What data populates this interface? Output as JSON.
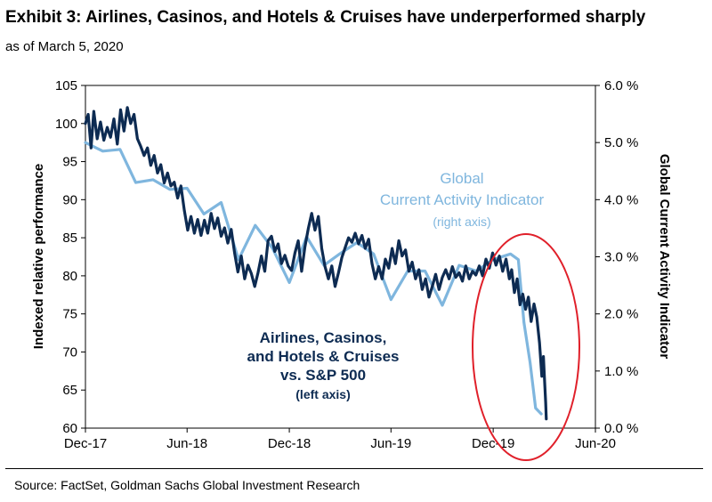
{
  "header": {
    "title": "Exhibit 3: Airlines, Casinos, and Hotels & Cruises have underperformed sharply",
    "subtitle": "as of March 5, 2020"
  },
  "footer": {
    "source": "Source: FactSet, Goldman Sachs Global Investment Research"
  },
  "annotations": {
    "cai_lines": [
      "Global",
      "Current Activity Indicator",
      "(right axis)"
    ],
    "perf_lines": [
      "Airlines, Casinos,",
      "and Hotels & Cruises",
      "vs. S&P 500",
      "(left axis)"
    ]
  },
  "colors": {
    "dark_series": "#0d2b52",
    "light_series": "#7fb6de",
    "highlight_ellipse": "#e0202a"
  },
  "chart_data": {
    "type": "line",
    "title": "Exhibit 3: Airlines, Casinos, and Hotels & Cruises have underperformed sharply",
    "subtitle": "as of March 5, 2020",
    "x_axis": {
      "type": "date",
      "range": [
        "2017-12-01",
        "2020-06-01"
      ],
      "ticks": [
        "2017-12-01",
        "2018-06-01",
        "2018-12-01",
        "2019-06-01",
        "2019-12-01",
        "2020-06-01"
      ],
      "tick_labels": [
        "Dec-17",
        "Jun-18",
        "Dec-18",
        "Jun-19",
        "Dec-19",
        "Jun-20"
      ]
    },
    "y_left": {
      "label": "Indexed relative performance",
      "range": [
        60,
        105
      ],
      "ticks": [
        60,
        65,
        70,
        75,
        80,
        85,
        90,
        95,
        100,
        105
      ]
    },
    "y_right": {
      "label": "Global Current Activity Indicator",
      "range": [
        0,
        6
      ],
      "ticks": [
        0,
        1,
        2,
        3,
        4,
        5,
        6
      ],
      "tick_labels": [
        "0.0 %",
        "1.0 %",
        "2.0 %",
        "3.0 %",
        "4.0 %",
        "5.0 %",
        "6.0 %"
      ]
    },
    "series": [
      {
        "name": "Airlines, Casinos, and Hotels & Cruises vs. S&P 500",
        "axis": "left",
        "points": [
          [
            "2017-12-01",
            100.0
          ],
          [
            "2017-12-06",
            101.2
          ],
          [
            "2017-12-11",
            96.8
          ],
          [
            "2017-12-16",
            101.6
          ],
          [
            "2017-12-22",
            98.0
          ],
          [
            "2017-12-28",
            100.2
          ],
          [
            "2018-01-03",
            97.8
          ],
          [
            "2018-01-09",
            99.5
          ],
          [
            "2018-01-15",
            98.2
          ],
          [
            "2018-01-21",
            100.6
          ],
          [
            "2018-01-27",
            97.3
          ],
          [
            "2018-02-02",
            101.8
          ],
          [
            "2018-02-08",
            99.0
          ],
          [
            "2018-02-14",
            102.1
          ],
          [
            "2018-02-20",
            100.0
          ],
          [
            "2018-02-26",
            101.2
          ],
          [
            "2018-03-04",
            98.0
          ],
          [
            "2018-03-10",
            97.0
          ],
          [
            "2018-03-16",
            95.8
          ],
          [
            "2018-03-22",
            96.8
          ],
          [
            "2018-03-28",
            94.5
          ],
          [
            "2018-04-03",
            95.8
          ],
          [
            "2018-04-09",
            93.5
          ],
          [
            "2018-04-15",
            94.6
          ],
          [
            "2018-04-21",
            92.2
          ],
          [
            "2018-04-27",
            93.5
          ],
          [
            "2018-05-03",
            91.8
          ],
          [
            "2018-05-09",
            92.3
          ],
          [
            "2018-05-15",
            90.2
          ],
          [
            "2018-05-21",
            91.8
          ],
          [
            "2018-05-27",
            88.6
          ],
          [
            "2018-06-02",
            86.0
          ],
          [
            "2018-06-08",
            87.8
          ],
          [
            "2018-06-14",
            85.6
          ],
          [
            "2018-06-20",
            87.4
          ],
          [
            "2018-06-26",
            85.3
          ],
          [
            "2018-07-02",
            87.3
          ],
          [
            "2018-07-08",
            85.6
          ],
          [
            "2018-07-14",
            88.2
          ],
          [
            "2018-07-20",
            86.2
          ],
          [
            "2018-07-26",
            87.6
          ],
          [
            "2018-08-01",
            85.2
          ],
          [
            "2018-08-07",
            86.3
          ],
          [
            "2018-08-13",
            84.3
          ],
          [
            "2018-08-19",
            86.1
          ],
          [
            "2018-08-25",
            83.0
          ],
          [
            "2018-08-31",
            80.5
          ],
          [
            "2018-09-06",
            82.6
          ],
          [
            "2018-09-12",
            79.6
          ],
          [
            "2018-09-18",
            81.4
          ],
          [
            "2018-09-24",
            80.3
          ],
          [
            "2018-09-30",
            78.6
          ],
          [
            "2018-10-06",
            80.4
          ],
          [
            "2018-10-12",
            82.6
          ],
          [
            "2018-10-18",
            80.6
          ],
          [
            "2018-10-24",
            84.6
          ],
          [
            "2018-10-30",
            85.2
          ],
          [
            "2018-11-05",
            83.2
          ],
          [
            "2018-11-11",
            84.2
          ],
          [
            "2018-11-17",
            81.6
          ],
          [
            "2018-11-23",
            82.7
          ],
          [
            "2018-11-29",
            81.3
          ],
          [
            "2018-12-05",
            80.7
          ],
          [
            "2018-12-11",
            83.0
          ],
          [
            "2018-12-17",
            84.6
          ],
          [
            "2018-12-23",
            80.6
          ],
          [
            "2018-12-29",
            83.8
          ],
          [
            "2019-01-04",
            86.2
          ],
          [
            "2019-01-10",
            88.2
          ],
          [
            "2019-01-16",
            86.0
          ],
          [
            "2019-01-22",
            87.8
          ],
          [
            "2019-01-28",
            83.6
          ],
          [
            "2019-02-03",
            81.2
          ],
          [
            "2019-02-09",
            79.6
          ],
          [
            "2019-02-15",
            81.3
          ],
          [
            "2019-02-21",
            78.6
          ],
          [
            "2019-02-27",
            80.4
          ],
          [
            "2019-03-05",
            82.4
          ],
          [
            "2019-03-11",
            83.7
          ],
          [
            "2019-03-17",
            85.0
          ],
          [
            "2019-03-23",
            84.4
          ],
          [
            "2019-03-29",
            85.6
          ],
          [
            "2019-04-04",
            84.2
          ],
          [
            "2019-04-10",
            85.3
          ],
          [
            "2019-04-16",
            83.6
          ],
          [
            "2019-04-22",
            84.8
          ],
          [
            "2019-04-28",
            81.6
          ],
          [
            "2019-05-04",
            79.6
          ],
          [
            "2019-05-10",
            81.2
          ],
          [
            "2019-05-16",
            79.6
          ],
          [
            "2019-05-22",
            82.2
          ],
          [
            "2019-05-28",
            81.0
          ],
          [
            "2019-06-03",
            83.6
          ],
          [
            "2019-06-09",
            81.6
          ],
          [
            "2019-06-15",
            84.6
          ],
          [
            "2019-06-21",
            82.6
          ],
          [
            "2019-06-27",
            83.4
          ],
          [
            "2019-07-03",
            80.6
          ],
          [
            "2019-07-09",
            81.8
          ],
          [
            "2019-07-15",
            79.6
          ],
          [
            "2019-07-21",
            80.8
          ],
          [
            "2019-07-27",
            78.2
          ],
          [
            "2019-08-02",
            79.6
          ],
          [
            "2019-08-08",
            77.2
          ],
          [
            "2019-08-14",
            78.6
          ],
          [
            "2019-08-20",
            80.2
          ],
          [
            "2019-08-26",
            78.2
          ],
          [
            "2019-09-01",
            79.8
          ],
          [
            "2019-09-07",
            80.8
          ],
          [
            "2019-09-13",
            79.6
          ],
          [
            "2019-09-19",
            81.2
          ],
          [
            "2019-09-25",
            79.8
          ],
          [
            "2019-10-01",
            80.4
          ],
          [
            "2019-10-07",
            79.3
          ],
          [
            "2019-10-13",
            81.3
          ],
          [
            "2019-10-19",
            79.6
          ],
          [
            "2019-10-25",
            80.6
          ],
          [
            "2019-10-31",
            80.1
          ],
          [
            "2019-11-06",
            81.3
          ],
          [
            "2019-11-12",
            80.0
          ],
          [
            "2019-11-18",
            82.2
          ],
          [
            "2019-11-24",
            81.0
          ],
          [
            "2019-11-30",
            83.0
          ],
          [
            "2019-12-06",
            81.4
          ],
          [
            "2019-12-12",
            82.6
          ],
          [
            "2019-12-18",
            80.6
          ],
          [
            "2019-12-24",
            82.2
          ],
          [
            "2019-12-30",
            79.6
          ],
          [
            "2020-01-03",
            80.8
          ],
          [
            "2020-01-08",
            77.8
          ],
          [
            "2020-01-13",
            79.6
          ],
          [
            "2020-01-18",
            76.2
          ],
          [
            "2020-01-23",
            77.6
          ],
          [
            "2020-01-28",
            75.6
          ],
          [
            "2020-02-02",
            77.2
          ],
          [
            "2020-02-07",
            74.0
          ],
          [
            "2020-02-12",
            76.3
          ],
          [
            "2020-02-17",
            74.6
          ],
          [
            "2020-02-22",
            71.2
          ],
          [
            "2020-02-26",
            66.8
          ],
          [
            "2020-02-29",
            69.4
          ],
          [
            "2020-03-02",
            66.2
          ],
          [
            "2020-03-04",
            63.4
          ],
          [
            "2020-03-05",
            61.2
          ]
        ]
      },
      {
        "name": "Global Current Activity Indicator",
        "axis": "right",
        "points": [
          [
            "2017-12-01",
            5.0
          ],
          [
            "2018-01-01",
            4.85
          ],
          [
            "2018-02-01",
            4.88
          ],
          [
            "2018-03-01",
            4.3
          ],
          [
            "2018-04-01",
            4.35
          ],
          [
            "2018-05-01",
            4.18
          ],
          [
            "2018-06-01",
            4.2
          ],
          [
            "2018-07-01",
            3.75
          ],
          [
            "2018-08-01",
            3.95
          ],
          [
            "2018-09-01",
            2.95
          ],
          [
            "2018-10-01",
            3.55
          ],
          [
            "2018-11-01",
            3.15
          ],
          [
            "2018-12-01",
            2.55
          ],
          [
            "2019-01-01",
            3.35
          ],
          [
            "2019-02-01",
            2.85
          ],
          [
            "2019-03-01",
            3.05
          ],
          [
            "2019-04-01",
            3.25
          ],
          [
            "2019-05-01",
            3.05
          ],
          [
            "2019-06-01",
            2.25
          ],
          [
            "2019-07-01",
            2.75
          ],
          [
            "2019-08-01",
            2.75
          ],
          [
            "2019-09-01",
            2.15
          ],
          [
            "2019-10-01",
            2.85
          ],
          [
            "2019-11-01",
            2.75
          ],
          [
            "2019-12-01",
            2.95
          ],
          [
            "2020-01-01",
            3.05
          ],
          [
            "2020-01-15",
            2.95
          ],
          [
            "2020-01-25",
            1.85
          ],
          [
            "2020-02-05",
            1.15
          ],
          [
            "2020-02-15",
            0.35
          ],
          [
            "2020-02-25",
            0.25
          ]
        ]
      }
    ],
    "grid": false,
    "legend": "none"
  }
}
